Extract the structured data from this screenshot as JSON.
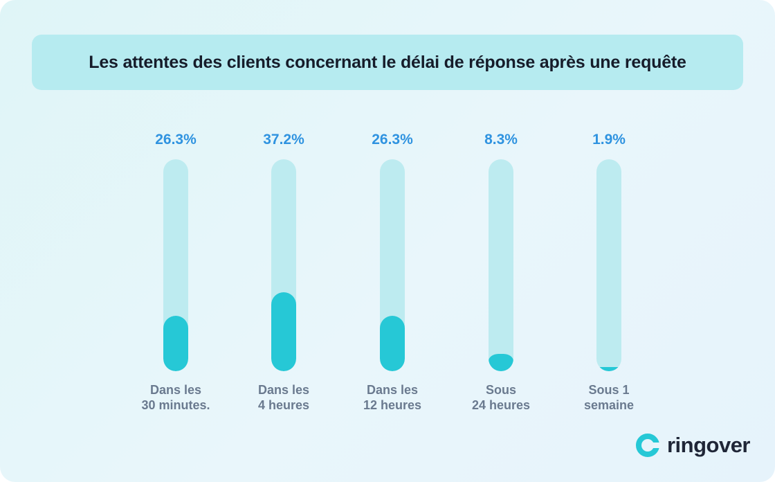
{
  "chart_data": {
    "type": "bar",
    "title": "Les attentes des clients concernant le délai de réponse après une requête",
    "categories": [
      [
        "Dans les",
        "30 minutes."
      ],
      [
        "Dans les",
        "4 heures"
      ],
      [
        "Dans les",
        "12 heures"
      ],
      [
        "Sous",
        "24 heures"
      ],
      [
        "Sous 1",
        "semaine"
      ]
    ],
    "values": [
      26.3,
      37.2,
      26.3,
      8.3,
      1.9
    ],
    "value_labels": [
      "26.3%",
      "37.2%",
      "26.3%",
      "8.3%",
      "1.9%"
    ],
    "ylim": [
      0,
      100
    ],
    "colors": {
      "fill": "#26c8d6",
      "track": "#bdebf0",
      "value_text": "#2f93e0"
    }
  },
  "brand": {
    "name": "ringover",
    "accent": "#26c8d6"
  }
}
